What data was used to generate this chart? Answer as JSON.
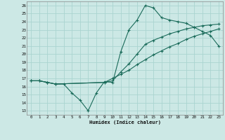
{
  "xlabel": "Humidex (Indice chaleur)",
  "bg_color": "#cce8e5",
  "grid_color": "#aad4d0",
  "line_color": "#1a6b5a",
  "xlim": [
    -0.5,
    23.5
  ],
  "ylim": [
    12.5,
    26.5
  ],
  "xticks": [
    0,
    1,
    2,
    3,
    4,
    5,
    6,
    7,
    8,
    9,
    10,
    11,
    12,
    13,
    14,
    15,
    16,
    17,
    18,
    19,
    20,
    21,
    22,
    23
  ],
  "yticks": [
    13,
    14,
    15,
    16,
    17,
    18,
    19,
    20,
    21,
    22,
    23,
    24,
    25,
    26
  ],
  "line1_x": [
    0,
    1,
    2,
    3,
    9,
    10,
    11,
    12,
    13,
    14,
    15,
    16,
    17,
    18,
    19,
    20,
    21,
    22,
    23
  ],
  "line1_y": [
    16.7,
    16.7,
    16.5,
    16.3,
    16.5,
    17.0,
    17.5,
    18.0,
    18.7,
    19.3,
    19.9,
    20.4,
    20.9,
    21.3,
    21.8,
    22.2,
    22.5,
    22.8,
    23.1
  ],
  "line2_x": [
    0,
    1,
    2,
    3,
    9,
    10,
    11,
    12,
    13,
    14,
    15,
    16,
    17,
    18,
    19,
    20,
    21,
    22,
    23
  ],
  "line2_y": [
    16.7,
    16.7,
    16.5,
    16.3,
    16.5,
    16.7,
    17.8,
    18.8,
    20.0,
    21.2,
    21.7,
    22.1,
    22.5,
    22.8,
    23.1,
    23.3,
    23.5,
    23.6,
    23.7
  ],
  "line3_x": [
    0,
    1,
    2,
    3,
    4,
    5,
    6,
    7,
    8,
    9,
    10,
    11,
    12,
    13,
    14,
    15,
    16,
    17,
    18,
    19,
    20,
    21,
    22,
    23
  ],
  "line3_y": [
    16.7,
    16.7,
    16.5,
    16.3,
    16.3,
    15.2,
    14.3,
    13.0,
    15.2,
    16.6,
    16.5,
    20.3,
    23.0,
    24.2,
    26.0,
    25.7,
    24.5,
    24.2,
    24.0,
    23.8,
    23.3,
    22.8,
    22.3,
    21.0
  ]
}
